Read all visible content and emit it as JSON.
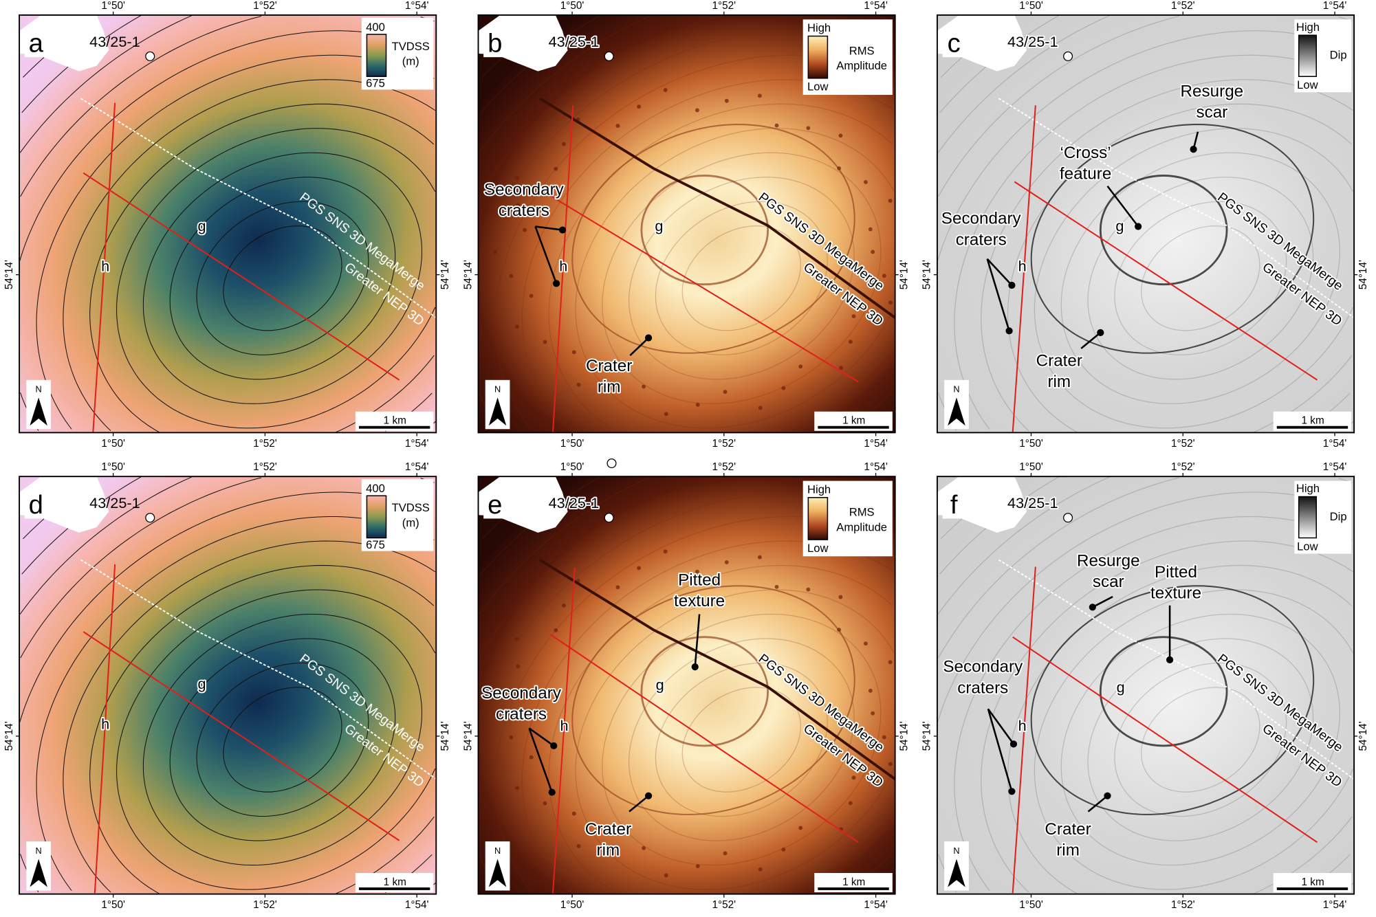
{
  "figure": {
    "ticks": {
      "longitude": [
        "1°50'",
        "1°52'",
        "1°54'"
      ],
      "latitude": "54°14'"
    },
    "common": {
      "well": "43/25-1",
      "survey_upper": "PGS SNS 3D MegaMerge",
      "survey_lower": "Greater NEP 3D",
      "profile_g": "g",
      "profile_h": "h",
      "north": "N",
      "scale": "1 km"
    },
    "legends": {
      "depth": {
        "top": "400",
        "bottom": "675",
        "title": [
          "TVDSS",
          "(m)"
        ]
      },
      "rms": {
        "top": "High",
        "bottom": "Low",
        "title": [
          "RMS",
          "Amplitude"
        ]
      },
      "dip": {
        "top": "High",
        "bottom": "Low",
        "title": [
          "Dip"
        ]
      }
    },
    "annotations": {
      "secondary_craters": [
        "Secondary",
        "craters"
      ],
      "crater_rim": [
        "Crater",
        "rim"
      ],
      "resurge_scar": [
        "Resurge",
        "scar"
      ],
      "cross_feature": [
        "‘Cross’",
        "feature"
      ],
      "pitted_texture": [
        "Pitted",
        "texture"
      ]
    },
    "panels": [
      {
        "letter": "a",
        "type": "depth",
        "annotations": []
      },
      {
        "letter": "b",
        "type": "rms",
        "annotations": [
          "secondary_craters",
          "crater_rim"
        ]
      },
      {
        "letter": "c",
        "type": "dip",
        "annotations": [
          "resurge_scar",
          "cross_feature",
          "secondary_craters",
          "crater_rim"
        ]
      },
      {
        "letter": "d",
        "type": "depth",
        "annotations": []
      },
      {
        "letter": "e",
        "type": "rms",
        "annotations": [
          "pitted_texture",
          "secondary_craters",
          "crater_rim"
        ]
      },
      {
        "letter": "f",
        "type": "dip",
        "annotations": [
          "resurge_scar",
          "pitted_texture",
          "secondary_craters",
          "crater_rim"
        ]
      }
    ],
    "colors": {
      "profile_line": "#e0201a",
      "depth_ramp": [
        "#0e2a50",
        "#1d5069",
        "#4a806a",
        "#b09e4e",
        "#eda373",
        "#f6b4ac",
        "#f2caf0"
      ],
      "rms_ramp": [
        "#f3d49a",
        "#fcefc6",
        "#f0b870",
        "#c0602a",
        "#5a1a0a",
        "#260805"
      ],
      "dip_ramp": [
        "#f2f2f2",
        "#d6d6d6",
        "#cfcfcf"
      ]
    }
  }
}
